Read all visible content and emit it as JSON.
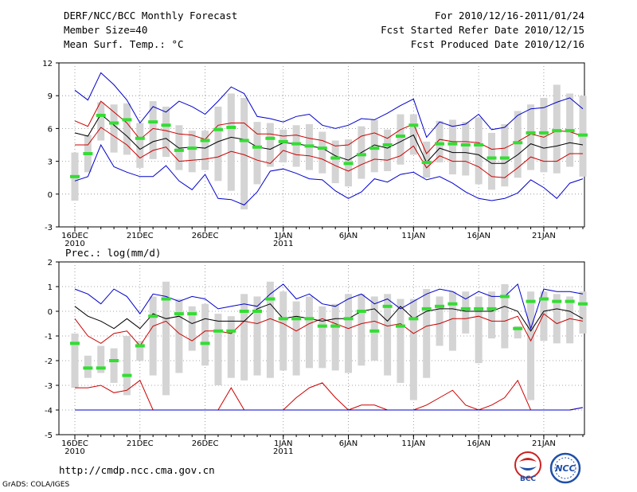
{
  "header": {
    "title": "DERF/NCC/BCC Monthly Forecast",
    "member_size": "Member Size=40",
    "variable": "Mean Surf. Temp.: °C",
    "forecast_range": "For 2010/12/16-2011/01/24",
    "started_date": "Fcst Started Refer Date 2010/12/15",
    "produced_date": "Fcst Produced Date 2010/12/16"
  },
  "footer": {
    "url": "http://cmdp.ncc.cma.gov.cn",
    "credit": "GrADS: COLA/IGES",
    "logo_left_text": "BCC",
    "logo_right_text": "NCC"
  },
  "colors": {
    "ensemble_mean": "#000000",
    "spread_bounds": "#0000cc",
    "std_bounds": "#cc0000",
    "observed_marker": "#33dd33",
    "box_fill": "#d4d4d4",
    "grid": "#888888"
  },
  "chart_data": [
    {
      "type": "line",
      "title": "Mean Surf. Temp.: °C",
      "xlabel": "",
      "ylabel": "°C",
      "ylim": [
        -3,
        12
      ],
      "yticks": [
        -3,
        0,
        3,
        6,
        9,
        12
      ],
      "x": [
        "2010-12-16",
        "2010-12-17",
        "2010-12-18",
        "2010-12-19",
        "2010-12-20",
        "2010-12-21",
        "2010-12-22",
        "2010-12-23",
        "2010-12-24",
        "2010-12-25",
        "2010-12-26",
        "2010-12-27",
        "2010-12-28",
        "2010-12-29",
        "2010-12-30",
        "2010-12-31",
        "2011-01-01",
        "2011-01-02",
        "2011-01-03",
        "2011-01-04",
        "2011-01-05",
        "2011-01-06",
        "2011-01-07",
        "2011-01-08",
        "2011-01-09",
        "2011-01-10",
        "2011-01-11",
        "2011-01-12",
        "2011-01-13",
        "2011-01-14",
        "2011-01-15",
        "2011-01-16",
        "2011-01-17",
        "2011-01-18",
        "2011-01-19",
        "2011-01-20",
        "2011-01-21",
        "2011-01-22",
        "2011-01-23",
        "2011-01-24"
      ],
      "xtick_labels": [
        {
          "day": 0,
          "label": "16DEC",
          "sub": "2010"
        },
        {
          "day": 5,
          "label": "21DEC",
          "sub": ""
        },
        {
          "day": 10,
          "label": "26DEC",
          "sub": ""
        },
        {
          "day": 16,
          "label": "1JAN",
          "sub": "2011"
        },
        {
          "day": 21,
          "label": "6JAN",
          "sub": ""
        },
        {
          "day": 26,
          "label": "11JAN",
          "sub": ""
        },
        {
          "day": 31,
          "label": "16JAN",
          "sub": ""
        },
        {
          "day": 36,
          "label": "21JAN",
          "sub": ""
        }
      ],
      "series": [
        {
          "name": "Ensemble Max",
          "color": "#0000cc",
          "values": [
            9.5,
            8.6,
            11.1,
            10.0,
            8.6,
            6.5,
            8.0,
            7.5,
            8.5,
            8.0,
            7.3,
            8.5,
            9.8,
            9.2,
            7.1,
            6.9,
            6.6,
            7.1,
            7.3,
            6.3,
            6.0,
            6.3,
            6.9,
            6.8,
            7.4,
            8.1,
            8.7,
            5.2,
            6.6,
            6.2,
            6.4,
            7.3,
            5.9,
            6.1,
            7.2,
            7.8,
            7.9,
            8.4,
            8.8,
            7.8
          ]
        },
        {
          "name": "Mean + 1 SD",
          "color": "#cc0000",
          "values": [
            6.7,
            6.2,
            8.5,
            7.5,
            6.5,
            5.0,
            6.0,
            5.8,
            5.5,
            5.4,
            5.0,
            6.3,
            6.5,
            6.5,
            5.5,
            5.5,
            5.3,
            5.4,
            5.1,
            4.9,
            4.4,
            4.5,
            5.3,
            5.6,
            5.1,
            5.9,
            6.4,
            3.7,
            5.0,
            4.8,
            4.8,
            4.7,
            4.1,
            4.2,
            4.8,
            5.5,
            5.2,
            5.8,
            5.7,
            5.3
          ]
        },
        {
          "name": "Ensemble Mean",
          "color": "#000000",
          "values": [
            5.6,
            5.3,
            7.3,
            6.3,
            5.3,
            4.1,
            4.8,
            5.1,
            4.2,
            4.3,
            4.2,
            4.8,
            5.2,
            5.0,
            4.3,
            4.1,
            4.7,
            4.6,
            4.4,
            4.2,
            3.5,
            3.1,
            3.8,
            4.5,
            4.2,
            4.8,
            5.4,
            2.9,
            4.2,
            3.8,
            3.8,
            3.6,
            2.8,
            2.8,
            3.6,
            4.6,
            4.2,
            4.4,
            4.7,
            4.5
          ]
        },
        {
          "name": "Mean - 1 SD",
          "color": "#cc0000",
          "values": [
            4.5,
            4.5,
            6.1,
            5.3,
            4.5,
            3.3,
            4.0,
            4.3,
            3.0,
            3.1,
            3.2,
            3.4,
            3.9,
            3.6,
            3.1,
            2.8,
            4.0,
            3.6,
            3.5,
            3.2,
            2.6,
            2.1,
            2.7,
            3.2,
            3.1,
            3.5,
            4.4,
            2.4,
            3.5,
            3.0,
            3.0,
            2.5,
            1.6,
            1.5,
            2.4,
            3.4,
            3.0,
            3.0,
            3.7,
            3.7
          ]
        },
        {
          "name": "Ensemble Min",
          "color": "#0000cc",
          "values": [
            1.2,
            1.6,
            4.5,
            2.5,
            2.0,
            1.6,
            1.6,
            2.6,
            1.2,
            0.4,
            1.8,
            -0.4,
            -0.5,
            -1.0,
            0.2,
            2.1,
            2.3,
            1.9,
            1.4,
            1.3,
            0.3,
            -0.4,
            0.2,
            1.4,
            1.1,
            1.8,
            2.0,
            1.3,
            1.6,
            1.0,
            0.2,
            -0.4,
            -0.6,
            -0.4,
            0.1,
            1.3,
            0.6,
            -0.4,
            1.0,
            1.4
          ]
        },
        {
          "name": "Observed",
          "color": "#33dd33",
          "marker": "dash",
          "values": [
            1.6,
            3.7,
            7.2,
            6.5,
            6.8,
            5.1,
            6.6,
            6.3,
            4.0,
            4.2,
            4.9,
            5.9,
            6.1,
            4.9,
            4.3,
            5.1,
            4.8,
            4.6,
            4.4,
            4.2,
            3.3,
            2.8,
            3.6,
            4.2,
            4.5,
            5.3,
            6.3,
            2.9,
            4.6,
            4.6,
            4.5,
            4.5,
            3.3,
            3.3,
            4.7,
            5.6,
            5.6,
            5.8,
            5.8,
            5.4
          ]
        }
      ],
      "boxes": {
        "name": "Ensemble spread (box)",
        "low": [
          -0.6,
          2.0,
          4.9,
          3.8,
          3.6,
          2.4,
          3.2,
          3.4,
          2.2,
          2.0,
          2.2,
          1.2,
          0.3,
          -1.4,
          0.9,
          2.5,
          2.9,
          2.5,
          2.2,
          1.9,
          1.0,
          0.7,
          1.4,
          2.0,
          2.1,
          2.7,
          3.6,
          1.5,
          2.9,
          1.8,
          1.7,
          0.9,
          0.4,
          0.7,
          1.5,
          2.2,
          2.0,
          1.9,
          2.5,
          1.6
        ],
        "high": [
          3.8,
          5.4,
          8.4,
          8.2,
          8.3,
          6.5,
          8.5,
          8.0,
          6.3,
          5.8,
          5.8,
          8.0,
          9.2,
          8.8,
          6.6,
          6.5,
          5.9,
          6.3,
          6.4,
          5.7,
          4.9,
          5.0,
          6.2,
          6.8,
          5.9,
          7.3,
          7.3,
          4.8,
          6.7,
          6.8,
          6.6,
          7.0,
          5.6,
          6.4,
          7.6,
          8.2,
          8.8,
          10.0,
          9.2,
          9.0
        ]
      }
    },
    {
      "type": "line",
      "title": "Prec.: log(mm/d)",
      "xlabel": "",
      "ylabel": "log(mm/d)",
      "ylim": [
        -5,
        2
      ],
      "yticks": [
        -5,
        -4,
        -3,
        -2,
        -1,
        0,
        1,
        2
      ],
      "x": [
        "2010-12-16",
        "2010-12-17",
        "2010-12-18",
        "2010-12-19",
        "2010-12-20",
        "2010-12-21",
        "2010-12-22",
        "2010-12-23",
        "2010-12-24",
        "2010-12-25",
        "2010-12-26",
        "2010-12-27",
        "2010-12-28",
        "2010-12-29",
        "2010-12-30",
        "2010-12-31",
        "2011-01-01",
        "2011-01-02",
        "2011-01-03",
        "2011-01-04",
        "2011-01-05",
        "2011-01-06",
        "2011-01-07",
        "2011-01-08",
        "2011-01-09",
        "2011-01-10",
        "2011-01-11",
        "2011-01-12",
        "2011-01-13",
        "2011-01-14",
        "2011-01-15",
        "2011-01-16",
        "2011-01-17",
        "2011-01-18",
        "2011-01-19",
        "2011-01-20",
        "2011-01-21",
        "2011-01-22",
        "2011-01-23",
        "2011-01-24"
      ],
      "xtick_labels": [
        {
          "day": 0,
          "label": "16DEC",
          "sub": "2010"
        },
        {
          "day": 5,
          "label": "21DEC",
          "sub": ""
        },
        {
          "day": 10,
          "label": "26DEC",
          "sub": ""
        },
        {
          "day": 16,
          "label": "1JAN",
          "sub": "2011"
        },
        {
          "day": 21,
          "label": "6JAN",
          "sub": ""
        },
        {
          "day": 26,
          "label": "11JAN",
          "sub": ""
        },
        {
          "day": 31,
          "label": "16JAN",
          "sub": ""
        },
        {
          "day": 36,
          "label": "21JAN",
          "sub": ""
        }
      ],
      "series": [
        {
          "name": "Ensemble Max",
          "color": "#0000cc",
          "values": [
            0.9,
            0.7,
            0.3,
            0.9,
            0.6,
            -0.1,
            0.7,
            0.6,
            0.4,
            0.6,
            0.5,
            0.1,
            0.2,
            0.3,
            0.2,
            0.7,
            1.1,
            0.5,
            0.7,
            0.3,
            0.2,
            0.5,
            0.7,
            0.3,
            0.5,
            0.1,
            0.4,
            0.7,
            0.9,
            0.8,
            0.5,
            0.8,
            0.6,
            0.6,
            1.1,
            -0.7,
            0.9,
            0.8,
            0.8,
            0.7
          ]
        },
        {
          "name": "Mean + 1 SD",
          "color": "#cc0000",
          "values": [
            -0.3,
            -1.0,
            -1.3,
            -0.9,
            -0.8,
            -1.4,
            -0.6,
            -0.4,
            -0.9,
            -1.2,
            -0.8,
            -0.8,
            -0.9,
            -0.4,
            -0.5,
            -0.3,
            -0.5,
            -0.8,
            -0.5,
            -0.3,
            -0.5,
            -0.7,
            -0.5,
            -0.4,
            -0.6,
            -0.5,
            -0.9,
            -0.6,
            -0.5,
            -0.3,
            -0.3,
            -0.2,
            -0.4,
            -0.4,
            -0.2,
            -1.2,
            -0.1,
            -0.5,
            -0.3,
            -0.4
          ]
        },
        {
          "name": "Ensemble Mean",
          "color": "#000000",
          "values": [
            0.2,
            -0.2,
            -0.4,
            -0.7,
            -0.3,
            -0.7,
            -0.1,
            -0.3,
            -0.2,
            -0.5,
            -0.3,
            -0.4,
            -0.4,
            -0.4,
            0.1,
            0.3,
            -0.3,
            -0.2,
            -0.3,
            -0.4,
            -0.3,
            -0.3,
            0.0,
            0.1,
            -0.4,
            0.2,
            -0.3,
            0.0,
            0.1,
            0.1,
            0.0,
            0.0,
            0.0,
            0.2,
            0.0,
            -0.8,
            0.0,
            0.1,
            0.0,
            -0.3
          ]
        },
        {
          "name": "Mean - 1 SD",
          "color": "#cc0000",
          "values": [
            -3.1,
            -3.1,
            -3.0,
            -3.3,
            -3.2,
            -2.8,
            -4.0,
            -4.0,
            -4.0,
            -4.0,
            -4.0,
            -4.0,
            -3.1,
            -4.0,
            -4.0,
            -4.0,
            -4.0,
            -3.5,
            -3.1,
            -2.9,
            -3.5,
            -4.0,
            -3.8,
            -3.8,
            -4.0,
            -4.0,
            -4.0,
            -3.8,
            -3.5,
            -3.2,
            -3.8,
            -4.0,
            -3.8,
            -3.5,
            -2.8,
            -4.0,
            -4.0,
            -4.0,
            -4.0,
            -3.9
          ]
        },
        {
          "name": "Ensemble Min",
          "color": "#0000cc",
          "values": [
            -4.0,
            -4.0,
            -4.0,
            -4.0,
            -4.0,
            -4.0,
            -4.0,
            -4.0,
            -4.0,
            -4.0,
            -4.0,
            -4.0,
            -4.0,
            -4.0,
            -4.0,
            -4.0,
            -4.0,
            -4.0,
            -4.0,
            -4.0,
            -4.0,
            -4.0,
            -4.0,
            -4.0,
            -4.0,
            -4.0,
            -4.0,
            -4.0,
            -4.0,
            -4.0,
            -4.0,
            -4.0,
            -4.0,
            -4.0,
            -4.0,
            -4.0,
            -4.0,
            -4.0,
            -4.0,
            -3.9
          ]
        },
        {
          "name": "Observed",
          "color": "#33dd33",
          "marker": "dash",
          "values": [
            -1.3,
            -2.3,
            -2.3,
            -2.0,
            -2.6,
            -1.4,
            -0.2,
            0.5,
            -0.1,
            -0.1,
            -1.3,
            -0.8,
            -0.8,
            0.0,
            0.0,
            0.5,
            -0.3,
            -0.3,
            -0.3,
            -0.6,
            -0.6,
            -0.3,
            0.0,
            -0.8,
            0.2,
            -0.6,
            -0.3,
            0.1,
            0.2,
            0.3,
            0.1,
            0.1,
            0.1,
            0.6,
            -0.7,
            0.4,
            0.5,
            0.4,
            0.4,
            0.3
          ]
        }
      ],
      "boxes": {
        "name": "Ensemble spread (box)",
        "low": [
          -3.1,
          -2.7,
          -2.5,
          -2.9,
          -3.4,
          -2.0,
          -2.6,
          -3.4,
          -2.5,
          -1.6,
          -2.2,
          -3.0,
          -2.7,
          -2.8,
          -2.6,
          -2.7,
          -2.4,
          -2.6,
          -2.3,
          -2.3,
          -2.4,
          -2.5,
          -2.2,
          -2.0,
          -2.6,
          -2.9,
          -3.6,
          -2.7,
          -1.4,
          -1.6,
          -0.9,
          -2.1,
          -1.1,
          -1.5,
          -1.1,
          -3.6,
          -1.2,
          -1.3,
          -1.3,
          -0.9
        ],
        "high": [
          -0.9,
          -1.8,
          -1.4,
          -1.5,
          -1.0,
          -1.2,
          0.6,
          1.2,
          0.5,
          0.2,
          0.3,
          -0.1,
          -0.2,
          0.7,
          0.6,
          1.2,
          0.8,
          0.4,
          0.6,
          0.2,
          0.3,
          0.7,
          0.7,
          0.6,
          0.7,
          0.5,
          0.5,
          0.9,
          0.6,
          0.8,
          0.8,
          0.6,
          0.8,
          1.1,
          -0.6,
          0.8,
          0.8,
          0.7,
          0.6,
          0.8
        ]
      }
    }
  ]
}
